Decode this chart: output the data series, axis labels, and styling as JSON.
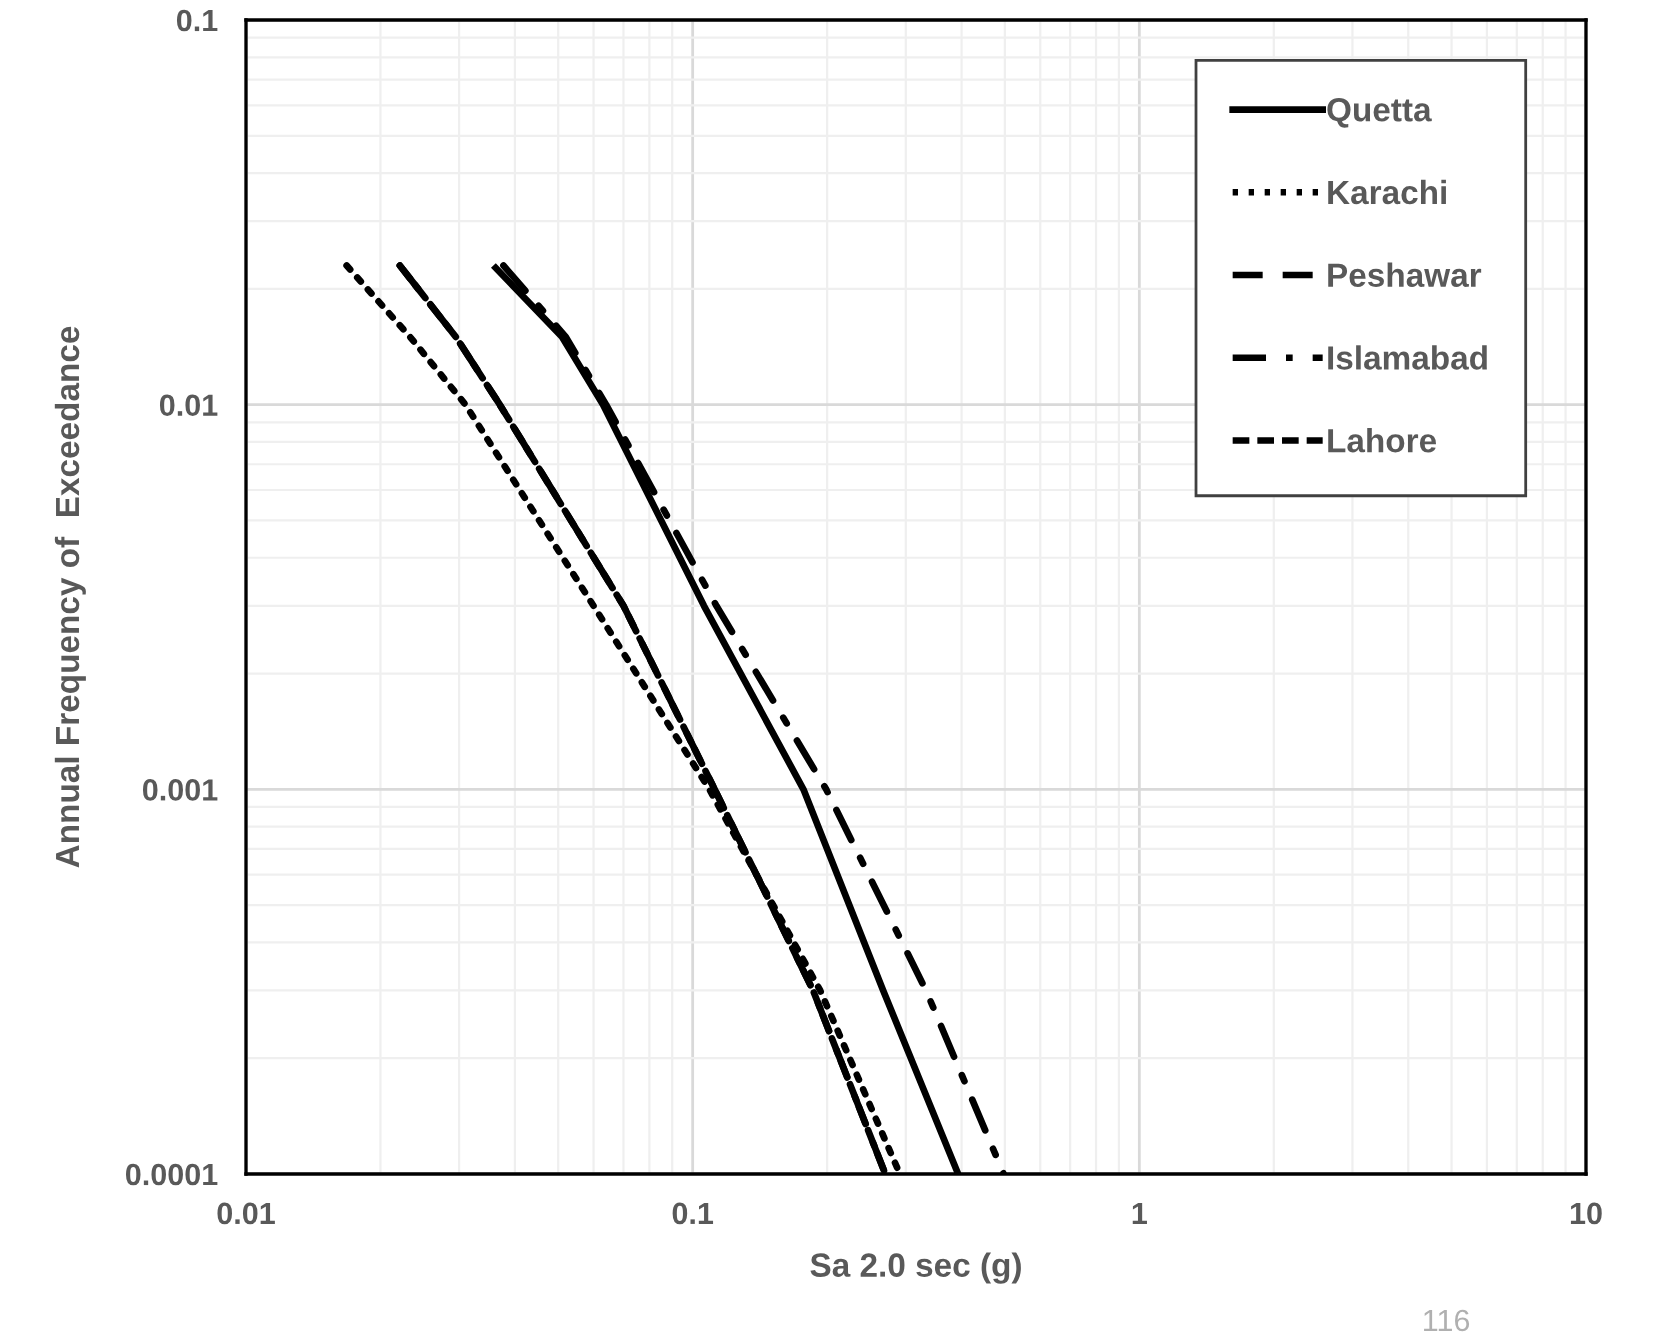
{
  "chart_data": {
    "type": "line",
    "xlabel": "Sa 2.0 sec (g)",
    "ylabel": "Annual Frequency of  Exceedance",
    "log": "xy",
    "xlim": [
      0.01,
      10
    ],
    "ylim": [
      0.0001,
      0.1
    ],
    "xticks": [
      0.01,
      0.1,
      1,
      10
    ],
    "yticks": [
      0.0001,
      0.001,
      0.01,
      0.1
    ],
    "grid": true,
    "legend": "top right",
    "marker": "none",
    "series": [
      {
        "name": "Quetta",
        "color": "#000000",
        "line_style": "solid",
        "x": [
          0.0358,
          0.051,
          0.063,
          0.106,
          0.177,
          0.267,
          0.393
        ],
        "values": [
          0.023,
          0.015,
          0.01,
          0.003,
          0.001,
          0.0003,
          0.0001
        ]
      },
      {
        "name": "Karachi",
        "color": "#000000",
        "line_style": "dotted",
        "x": [
          0.0168,
          0.0233,
          0.031,
          0.06,
          0.109,
          0.193,
          0.291
        ],
        "values": [
          0.023,
          0.015,
          0.01,
          0.003,
          0.001,
          0.0003,
          0.0001
        ]
      },
      {
        "name": "Peshawar",
        "color": "#000000",
        "line_style": "long_dashed",
        "x": [
          0.0221,
          0.0295,
          0.037,
          0.07,
          0.112,
          0.186,
          0.27
        ],
        "values": [
          0.023,
          0.015,
          0.01,
          0.003,
          0.001,
          0.0003,
          0.0001
        ]
      },
      {
        "name": "Islamabad",
        "color": "#000000",
        "line_style": "dashdot",
        "x": [
          0.0377,
          0.052,
          0.064,
          0.113,
          0.199,
          0.333,
          0.497
        ],
        "values": [
          0.023,
          0.015,
          0.01,
          0.003,
          0.001,
          0.0003,
          0.0001
        ]
      },
      {
        "name": "Lahore",
        "color": "#000000",
        "line_style": "dashed",
        "x": [
          0.0221,
          0.0295,
          0.037,
          0.07,
          0.112,
          0.186,
          0.27
        ],
        "values": [
          0.023,
          0.015,
          0.01,
          0.003,
          0.001,
          0.0003,
          0.0001
        ]
      }
    ],
    "annotations": [
      "116"
    ]
  }
}
